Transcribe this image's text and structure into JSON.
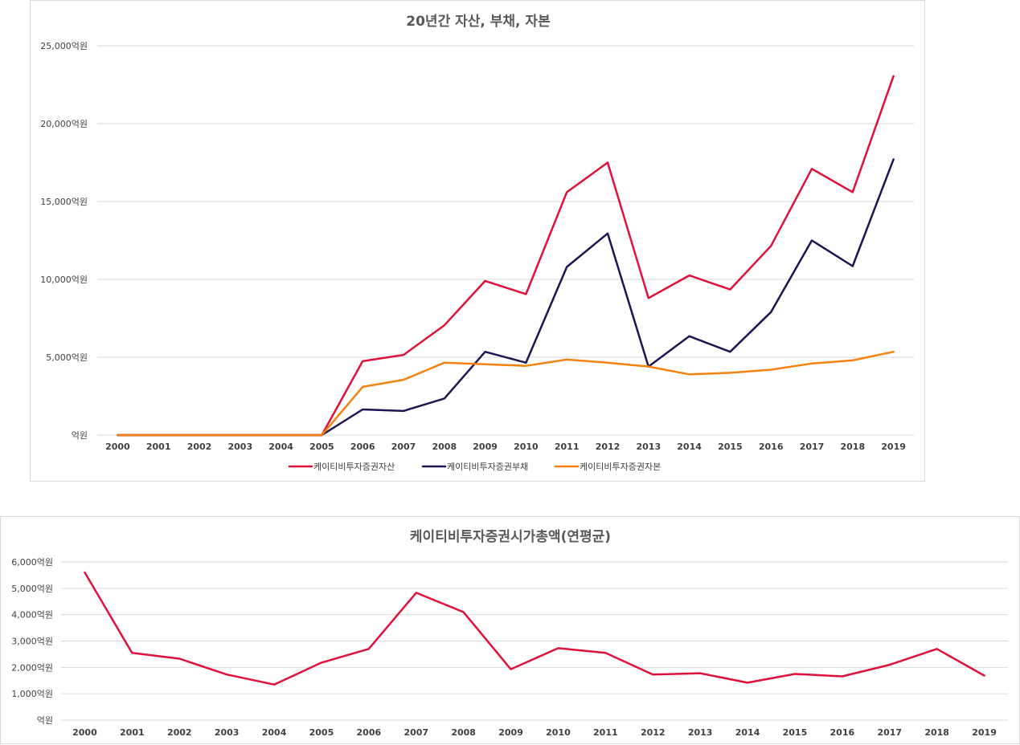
{
  "colors": {
    "asset": "#e0103a",
    "liability": "#1c1552",
    "equity": "#f5820f",
    "marketcap": "#e0103a"
  },
  "chart_data": [
    {
      "type": "line",
      "title": "20년간 자산, 부채, 자본",
      "categories": [
        "2000",
        "2001",
        "2002",
        "2003",
        "2004",
        "2005",
        "2006",
        "2007",
        "2008",
        "2009",
        "2010",
        "2011",
        "2012",
        "2013",
        "2014",
        "2015",
        "2016",
        "2017",
        "2018",
        "2019"
      ],
      "ylim": [
        0,
        25000
      ],
      "ytick_values": [
        0,
        5000,
        10000,
        15000,
        20000,
        25000
      ],
      "ytick_labels": [
        "억원",
        "5,000억원",
        "10,000억원",
        "15,000억원",
        "20,000억원",
        "25,000억원"
      ],
      "grid": true,
      "legend_position": "bottom",
      "series": [
        {
          "name": "케이티비투자증권자산",
          "color_key": "asset",
          "values": [
            0,
            0,
            0,
            0,
            0,
            0,
            4750,
            5150,
            7050,
            9900,
            9050,
            15600,
            17500,
            8800,
            10250,
            9350,
            12150,
            17100,
            15600,
            23050
          ]
        },
        {
          "name": "케이티비투자증권부채",
          "color_key": "liability",
          "values": [
            0,
            0,
            0,
            0,
            0,
            0,
            1650,
            1550,
            2350,
            5350,
            4650,
            10800,
            12950,
            4400,
            6350,
            5350,
            7900,
            12500,
            10850,
            17700
          ]
        },
        {
          "name": "케이티비투자증권자본",
          "color_key": "equity",
          "values": [
            0,
            0,
            0,
            0,
            0,
            0,
            3100,
            3550,
            4650,
            4550,
            4450,
            4850,
            4650,
            4400,
            3900,
            4000,
            4200,
            4600,
            4800,
            5350
          ]
        }
      ]
    },
    {
      "type": "line",
      "title": "케이티비투자증권시가총액(연평균)",
      "categories": [
        "2000",
        "2001",
        "2002",
        "2003",
        "2004",
        "2005",
        "2006",
        "2007",
        "2008",
        "2009",
        "2010",
        "2011",
        "2012",
        "2013",
        "2014",
        "2015",
        "2016",
        "2017",
        "2018",
        "2019"
      ],
      "ylim": [
        0,
        6000
      ],
      "ytick_values": [
        0,
        1000,
        2000,
        3000,
        4000,
        5000,
        6000
      ],
      "ytick_labels": [
        "억원",
        "1,000억원",
        "2,000억원",
        "3,000억원",
        "4,000억원",
        "5,000억원",
        "6,000억원"
      ],
      "grid": true,
      "series": [
        {
          "color_key": "marketcap",
          "values": [
            5600,
            2550,
            2330,
            1730,
            1350,
            2180,
            2700,
            4830,
            4100,
            1930,
            2730,
            2550,
            1730,
            1780,
            1420,
            1750,
            1660,
            2100,
            2700,
            1690
          ]
        }
      ]
    }
  ]
}
